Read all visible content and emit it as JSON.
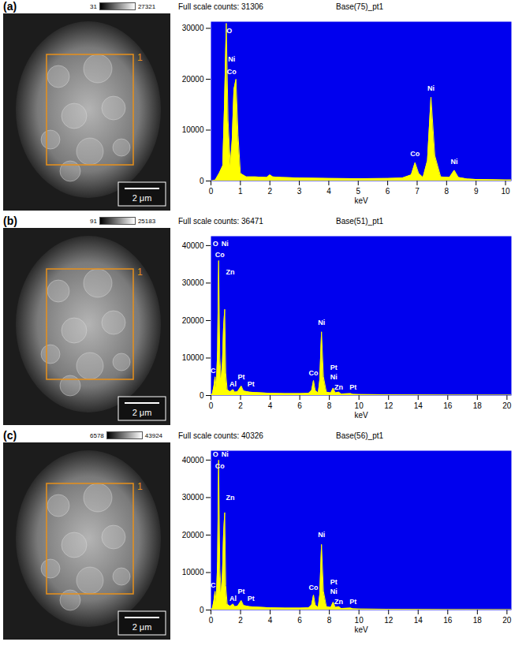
{
  "chart_data": [
    {
      "type": "area",
      "panel": "(a)",
      "title": "Full scale counts: 31306",
      "subtitle": "Base(75)_pt1",
      "x_label": "keV",
      "image": {
        "grayscale_min": "31",
        "grayscale_max": "27321",
        "region_label": "1",
        "scale_bar": "2 μm"
      },
      "xlim": [
        0,
        10.2
      ],
      "xticks": [
        0,
        1,
        2,
        3,
        4,
        5,
        6,
        7,
        8,
        9,
        10
      ],
      "ylim": [
        0,
        31306
      ],
      "yticks": [
        0,
        10000,
        20000,
        30000
      ],
      "x": [
        0,
        0.15,
        0.28,
        0.4,
        0.46,
        0.52,
        0.58,
        0.66,
        0.72,
        0.78,
        0.85,
        0.92,
        1.0,
        1.2,
        1.5,
        1.9,
        2.0,
        2.1,
        2.4,
        3,
        4,
        5,
        6,
        6.5,
        6.8,
        6.93,
        7.05,
        7.2,
        7.35,
        7.47,
        7.6,
        7.8,
        8.1,
        8.26,
        8.4,
        8.7,
        9,
        10,
        10.2
      ],
      "values": [
        0,
        200,
        1500,
        3000,
        15000,
        31000,
        12000,
        3000,
        8000,
        18000,
        20000,
        9000,
        1500,
        800,
        800,
        700,
        1200,
        800,
        700,
        600,
        500,
        450,
        500,
        600,
        1200,
        3600,
        1500,
        700,
        4000,
        16500,
        5000,
        800,
        700,
        2100,
        700,
        400,
        300,
        200,
        200
      ],
      "color": "#ffff00",
      "annotations": [
        {
          "text": "O",
          "x": 0.62,
          "y": 29500
        },
        {
          "text": "Ni",
          "x": 0.7,
          "y": 24000
        },
        {
          "text": "Co",
          "x": 0.7,
          "y": 21500
        },
        {
          "text": "Co",
          "x": 6.93,
          "y": 5300
        },
        {
          "text": "Ni",
          "x": 7.47,
          "y": 18200
        },
        {
          "text": "Ni",
          "x": 8.26,
          "y": 3800
        }
      ]
    },
    {
      "type": "area",
      "panel": "(b)",
      "title": "Full scale counts: 36471",
      "subtitle": "Base(51)_pt1",
      "x_label": "keV",
      "image": {
        "grayscale_min": "91",
        "grayscale_max": "25183",
        "region_label": "1",
        "scale_bar": "2 μm"
      },
      "xlim": [
        0,
        20.3
      ],
      "xticks": [
        0,
        2,
        4,
        6,
        8,
        10,
        12,
        14,
        16,
        18,
        20
      ],
      "ylim": [
        0,
        42500
      ],
      "yticks": [
        0,
        10000,
        20000,
        30000,
        40000
      ],
      "x": [
        0,
        0.1,
        0.2,
        0.28,
        0.36,
        0.45,
        0.52,
        0.6,
        0.7,
        0.78,
        0.85,
        0.93,
        1.0,
        1.1,
        1.3,
        1.49,
        1.6,
        1.8,
        2.05,
        2.2,
        2.6,
        3,
        4,
        5,
        6,
        6.6,
        6.8,
        6.93,
        7.05,
        7.25,
        7.35,
        7.47,
        7.6,
        7.8,
        8.1,
        8.26,
        8.4,
        8.63,
        8.8,
        9.44,
        9.6,
        10,
        12,
        14,
        16,
        18,
        20,
        20.3
      ],
      "values": [
        0,
        500,
        2500,
        5000,
        2000,
        12000,
        36000,
        10000,
        4000,
        9000,
        18000,
        23000,
        6000,
        1500,
        1000,
        1600,
        900,
        1000,
        2500,
        1200,
        900,
        800,
        600,
        500,
        500,
        600,
        1300,
        4000,
        1300,
        700,
        4000,
        17000,
        5000,
        900,
        700,
        2000,
        700,
        900,
        400,
        500,
        300,
        250,
        200,
        150,
        120,
        100,
        80,
        80
      ],
      "color": "#ffff00",
      "annotations": [
        {
          "text": "C",
          "x": 0.15,
          "y": 6500
        },
        {
          "text": "O",
          "x": 0.3,
          "y": 40500
        },
        {
          "text": "Ni",
          "x": 0.95,
          "y": 40500
        },
        {
          "text": "Co",
          "x": 0.6,
          "y": 37500
        },
        {
          "text": "Zn",
          "x": 1.3,
          "y": 33000
        },
        {
          "text": "Al",
          "x": 1.49,
          "y": 3000
        },
        {
          "text": "Pt",
          "x": 2.05,
          "y": 5000
        },
        {
          "text": "Pt",
          "x": 2.7,
          "y": 3000
        },
        {
          "text": "Co",
          "x": 6.93,
          "y": 6000
        },
        {
          "text": "Ni",
          "x": 7.47,
          "y": 19500
        },
        {
          "text": "Pt",
          "x": 8.3,
          "y": 7500
        },
        {
          "text": "Ni",
          "x": 8.3,
          "y": 5000
        },
        {
          "text": "Zn",
          "x": 8.63,
          "y": 2200
        },
        {
          "text": "Pt",
          "x": 9.6,
          "y": 2200
        }
      ]
    },
    {
      "type": "area",
      "panel": "(c)",
      "title": "Full scale counts: 40326",
      "subtitle": "Base(56)_pt1",
      "x_label": "keV",
      "image": {
        "grayscale_min": "6578",
        "grayscale_max": "43924",
        "region_label": "1",
        "scale_bar": "2 μm"
      },
      "xlim": [
        0,
        20.3
      ],
      "xticks": [
        0,
        2,
        4,
        6,
        8,
        10,
        12,
        14,
        16,
        18,
        20
      ],
      "ylim": [
        0,
        42500
      ],
      "yticks": [
        0,
        10000,
        20000,
        30000,
        40000
      ],
      "x": [
        0,
        0.1,
        0.2,
        0.28,
        0.36,
        0.45,
        0.52,
        0.6,
        0.7,
        0.78,
        0.85,
        0.93,
        1.0,
        1.1,
        1.3,
        1.49,
        1.6,
        1.8,
        2.05,
        2.2,
        2.6,
        3,
        4,
        5,
        6,
        6.6,
        6.8,
        6.93,
        7.05,
        7.25,
        7.35,
        7.47,
        7.6,
        7.8,
        8.1,
        8.26,
        8.4,
        8.63,
        8.8,
        9.44,
        9.6,
        10,
        12,
        14,
        16,
        18,
        20,
        20.3
      ],
      "values": [
        0,
        500,
        2500,
        5000,
        2000,
        13000,
        40000,
        11000,
        4000,
        10000,
        20000,
        26000,
        6500,
        1500,
        1000,
        1600,
        900,
        1000,
        2500,
        1200,
        900,
        800,
        600,
        500,
        500,
        600,
        1300,
        4000,
        1300,
        700,
        4000,
        17500,
        5000,
        900,
        700,
        2100,
        700,
        900,
        400,
        500,
        300,
        250,
        200,
        150,
        120,
        100,
        80,
        80
      ],
      "color": "#ffff00",
      "annotations": [
        {
          "text": "C",
          "x": 0.15,
          "y": 6500
        },
        {
          "text": "O",
          "x": 0.3,
          "y": 41500
        },
        {
          "text": "Ni",
          "x": 0.95,
          "y": 41500
        },
        {
          "text": "Co",
          "x": 0.6,
          "y": 38300
        },
        {
          "text": "Zn",
          "x": 1.3,
          "y": 30000
        },
        {
          "text": "Al",
          "x": 1.49,
          "y": 3000
        },
        {
          "text": "Pt",
          "x": 2.05,
          "y": 5000
        },
        {
          "text": "Pt",
          "x": 2.7,
          "y": 3000
        },
        {
          "text": "Co",
          "x": 6.93,
          "y": 6000
        },
        {
          "text": "Ni",
          "x": 7.47,
          "y": 20000
        },
        {
          "text": "Pt",
          "x": 8.3,
          "y": 7500
        },
        {
          "text": "Ni",
          "x": 8.3,
          "y": 5000
        },
        {
          "text": "Zn",
          "x": 8.63,
          "y": 2200
        },
        {
          "text": "Pt",
          "x": 9.6,
          "y": 2200
        }
      ]
    }
  ]
}
